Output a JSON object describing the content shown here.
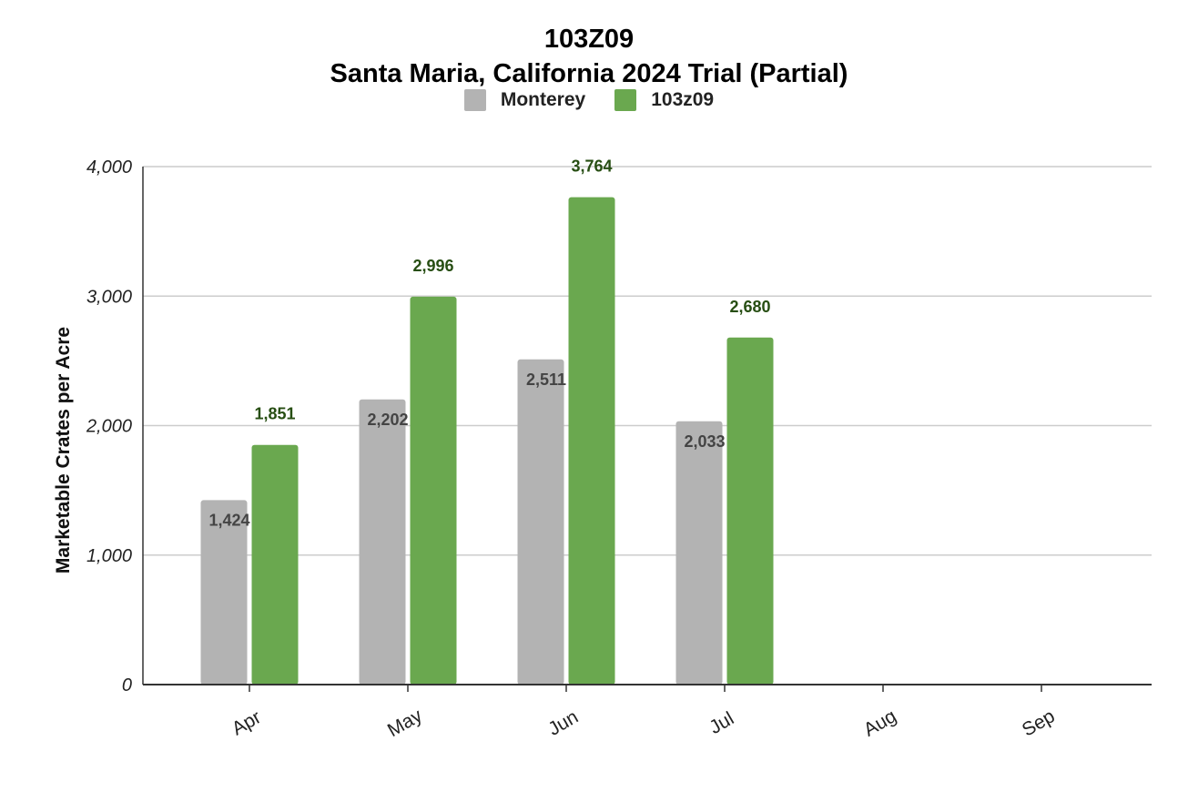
{
  "chart_data": {
    "type": "bar",
    "title": "103Z09",
    "subtitle": "Santa Maria, California 2024 Trial (Partial)",
    "xlabel": "",
    "ylabel": "Marketable Crates per Acre",
    "categories": [
      "Apr",
      "May",
      "Jun",
      "Jul",
      "Aug",
      "Sep"
    ],
    "ylim": [
      0,
      4000
    ],
    "yticks": [
      0,
      1000,
      2000,
      3000,
      4000
    ],
    "ytick_labels": [
      "0",
      "1,000",
      "2,000",
      "3,000",
      "4,000"
    ],
    "grid": true,
    "legend_position": "top-center",
    "series": [
      {
        "name": "Monterey",
        "color": "#b3b3b3",
        "label_color": "#444444",
        "values": [
          1424,
          2202,
          2511,
          2033,
          null,
          null
        ],
        "labels": [
          "1,424",
          "2,202",
          "2,511",
          "2,033",
          "",
          ""
        ]
      },
      {
        "name": "103z09",
        "color": "#6aa84f",
        "label_color": "#274e13",
        "values": [
          1851,
          2996,
          3764,
          2680,
          null,
          null
        ],
        "labels": [
          "1,851",
          "2,996",
          "3,764",
          "2,680",
          "",
          ""
        ]
      }
    ]
  }
}
